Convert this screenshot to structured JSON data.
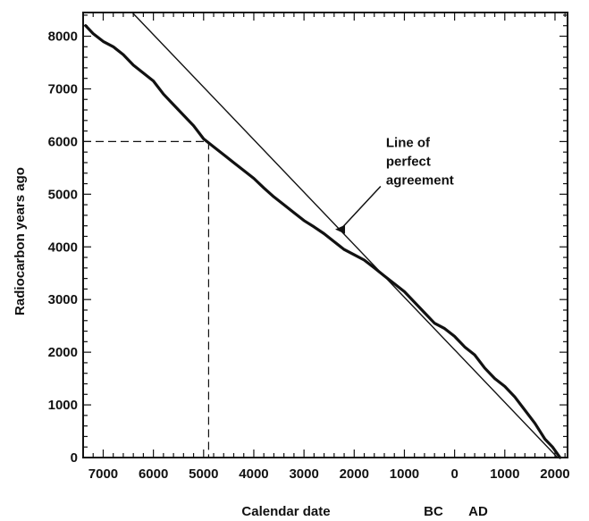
{
  "chart_data": {
    "type": "line",
    "title": "",
    "xlabel": "Calendar date",
    "ylabel": "Radiocarbon years ago",
    "era_labels": [
      "BC",
      "AD"
    ],
    "x_ticks": [
      {
        "label": "7000",
        "value": -7000
      },
      {
        "label": "6000",
        "value": -6000
      },
      {
        "label": "5000",
        "value": -5000
      },
      {
        "label": "4000",
        "value": -4000
      },
      {
        "label": "3000",
        "value": -3000
      },
      {
        "label": "2000",
        "value": -2000
      },
      {
        "label": "1000",
        "value": -1000
      },
      {
        "label": "0",
        "value": 0
      },
      {
        "label": "1000",
        "value": 1000
      },
      {
        "label": "2000",
        "value": 2000
      }
    ],
    "y_ticks": [
      0,
      1000,
      2000,
      3000,
      4000,
      5000,
      6000,
      7000,
      8000
    ],
    "xlim": [
      -7400,
      2250
    ],
    "ylim": [
      0,
      8450
    ],
    "series": [
      {
        "name": "",
        "role": "calibration-curve",
        "x": [
          -7350,
          -7200,
          -7000,
          -6800,
          -6600,
          -6400,
          -6200,
          -6000,
          -5800,
          -5600,
          -5400,
          -5200,
          -5000,
          -4800,
          -4600,
          -4400,
          -4200,
          -4000,
          -3800,
          -3600,
          -3400,
          -3200,
          -3000,
          -2800,
          -2600,
          -2400,
          -2200,
          -2000,
          -1800,
          -1600,
          -1400,
          -1200,
          -1000,
          -800,
          -600,
          -400,
          -200,
          0,
          200,
          400,
          600,
          800,
          1000,
          1200,
          1400,
          1600,
          1800,
          1950,
          2100
        ],
        "y": [
          8200,
          8050,
          7900,
          7800,
          7650,
          7450,
          7300,
          7150,
          6900,
          6700,
          6500,
          6300,
          6050,
          5900,
          5750,
          5600,
          5450,
          5300,
          5120,
          4950,
          4800,
          4650,
          4500,
          4380,
          4250,
          4100,
          3950,
          3850,
          3750,
          3600,
          3450,
          3300,
          3150,
          2950,
          2750,
          2550,
          2450,
          2300,
          2100,
          1950,
          1700,
          1500,
          1350,
          1150,
          900,
          650,
          350,
          200,
          0
        ]
      },
      {
        "name": "Line of perfect agreement",
        "role": "reference-line",
        "x": [
          -6420,
          2050
        ],
        "y": [
          8450,
          0
        ]
      }
    ],
    "annotations": [
      {
        "text_lines": [
          "Line of",
          "perfect",
          "agreement"
        ],
        "points_to": {
          "x": -2450,
          "y": 4400
        },
        "text_anchor": {
          "x": -2150,
          "y": 5150
        }
      }
    ],
    "reading_example": {
      "radiocarbon_years": 6000,
      "calendar_x": -4900
    },
    "grid": false,
    "legend": "none"
  }
}
